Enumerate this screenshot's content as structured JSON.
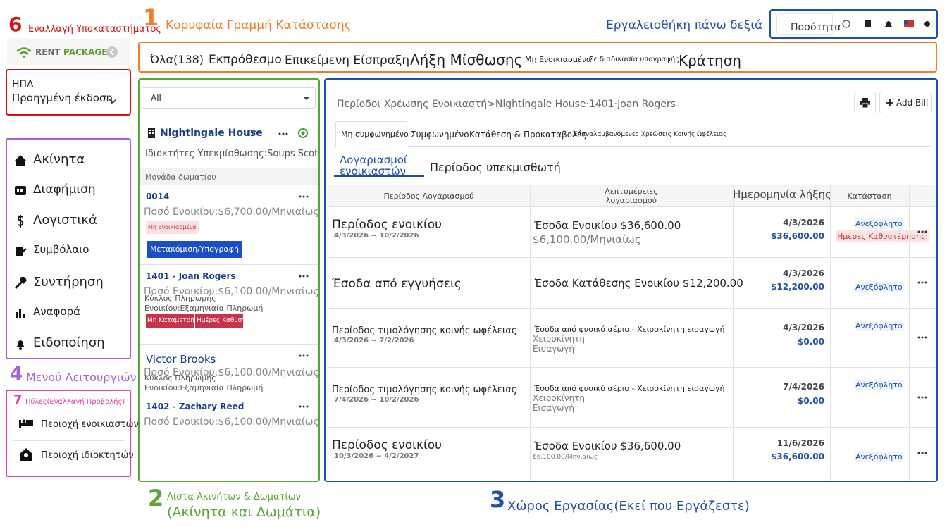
{
  "annotations": {
    "branch": {
      "number": "6",
      "label": "Εναλλαγή Υποκαταστήματος"
    },
    "status_bar": {
      "number": "1",
      "label": "Κορυφαία Γραμμή Κατάστασης"
    },
    "toolbar": {
      "label": "Εργαλειοθήκη πάνω δεξιά"
    },
    "menu": {
      "number": "4",
      "label": "Μενού Λειτουργιών"
    },
    "portals": {
      "number": "7",
      "label": "Πύλες(Εναλλαγή Προβολής)"
    },
    "property_list": {
      "number": "2",
      "label": "Λίστα Ακινήτων & Δωματίων",
      "sublabel": "(Ακίνητα και Δωμάτια)"
    },
    "workspace": {
      "number": "3",
      "label": "Χώρος Εργασίας(Εκεί που Εργάζεστε)"
    }
  },
  "toolbar": {
    "quantity": "Ποσότητα"
  },
  "logo": {
    "part1": "RENT",
    "part2": "PACKAGE"
  },
  "branch": {
    "country": "ΗΠΑ",
    "edition": "Προηγμένη έκδοση"
  },
  "menu": [
    "Ακίνητα",
    "Διαφήμιση",
    "Λογιστικά",
    "Συμβόλαιο",
    "Συντήρηση",
    "Αναφορά",
    "Ειδοποίηση"
  ],
  "portals": [
    "Περιοχή ενοικιαστών",
    "Περιοχή ιδιοκτητών"
  ],
  "status_bar": [
    "Όλα(138)",
    "Εκπρόθεσμο",
    "Επικείμενη Είσπραξη",
    "Λήξη Μίσθωσης",
    "Μη Ενοικιασμένα",
    "Σε διαδικασία υπογραφής",
    "Κράτηση"
  ],
  "property_list": {
    "filter": "All",
    "property": "Nightingale House",
    "owners": "Ιδιοκτήτες Υπεκμίσθωσης:Soups Scott",
    "unit_header": "Μονάδα δωματίου",
    "units": [
      {
        "title": "0014",
        "rent": "Ποσό Ενοικίου:$6,700.00/Μηνιαίως",
        "tags": [
          "Μη Ενοικιασμένα"
        ],
        "button": "Μετακόμιση/Υπογραφή"
      },
      {
        "title": "1401 - Joan Rogers",
        "rent": "Ποσό Ενοικίου:$6,100.00/Μηνιαίως",
        "cycle": [
          "Κύκλος Πληρωμής",
          "Ενοικίου:Εξαμηνιαία Πληρωμή"
        ],
        "tags": [
          "Μη Καταμετρημένο",
          "Ημέρες Καθυστέρησης:"
        ]
      },
      {
        "title": "Victor Brooks",
        "rent": "Ποσό Ενοικίου:$6,100.00/Μηνιαίως",
        "cycle": [
          "Κύκλος Πληρωμής",
          "Ενοικίου:Εξαμηνιαία Πληρωμή"
        ]
      },
      {
        "title": "1402 - Zachary Reed",
        "rent": "Ποσό Ενοικίου:$6,100.00/Μηνιαίως"
      }
    ]
  },
  "workspace": {
    "breadcrumb": "Περίοδοι Χρέωσης Ενοικιαστή>Nightingale House·1401·Joan Rogers",
    "add_bill": "Add Bill",
    "tabs": [
      "Μη συμφωνημένο",
      "Συμφωνημένο",
      "Κατάθεση & Προκαταβολές",
      "Επαναλαμβανόμενες Χρεώσεις Κοινής Ωφέλειας"
    ],
    "subtabs": [
      "Λογαριασμοί ενοικιαστών",
      "Περίοδος υπεκμισθωτή"
    ],
    "table": {
      "headers": [
        "Περίοδος Λογαριασμού",
        "Λεπτομέρειες λογαριασμού",
        "Ημερομηνία λήξης",
        "Κατάσταση"
      ],
      "rows": [
        {
          "period": "Περίοδος ενοικίου",
          "dates": "4/3/2026 ~ 10/2/2026",
          "details": "Έσοδα Ενοικίου $36,600.00",
          "notes": [
            "$6,100.00/Μηνιαίως"
          ],
          "due": "4/3/2026",
          "amount": "$36,600.00",
          "status": "Ανεξόφλητο",
          "late": "Ημέρες Καθυστέρησης:"
        },
        {
          "period": "Έσοδα από εγγυήσεις",
          "details": "Έσοδα Κατάθεσης Ενοικίου $12,200.00",
          "due": "4/3/2026",
          "amount": "$12,200.00",
          "status": "Ανεξόφλητο"
        },
        {
          "period": "Περίοδος τιμολόγησης κοινής ωφέλειας",
          "dates": "4/3/2026 ~ 7/2/2026",
          "details": "Έσοδα από φυσικό αέριο - Χειροκίνητη εισαγωγή",
          "notes": [
            "Χειροκίνητη",
            "Εισαγωγή"
          ],
          "due": "4/3/2026",
          "amount": "$0.00",
          "status": "Ανεξόφλητο"
        },
        {
          "period": "Περίοδος τιμολόγησης κοινής ωφέλειας",
          "dates": "7/4/2026 ~ 10/2/2026",
          "details": "Έσοδα από φυσικό αέριο - Χειροκίνητη εισαγωγή",
          "notes": [
            "Χειροκίνητη",
            "Εισαγωγή"
          ],
          "due": "7/4/2026",
          "amount": "$0.00",
          "status": "Ανεξόφλητο"
        },
        {
          "period": "Περίοδος ενοικίου",
          "dates": "10/3/2026 ~ 4/2/2027",
          "details": "Έσοδα Ενοικίου $36,600.00",
          "notes": [
            "$6,100.00/Μηνιαίως"
          ],
          "due": "11/6/2026",
          "amount": "$36,600.00",
          "status": "Ανεξόφλητο"
        }
      ]
    }
  }
}
